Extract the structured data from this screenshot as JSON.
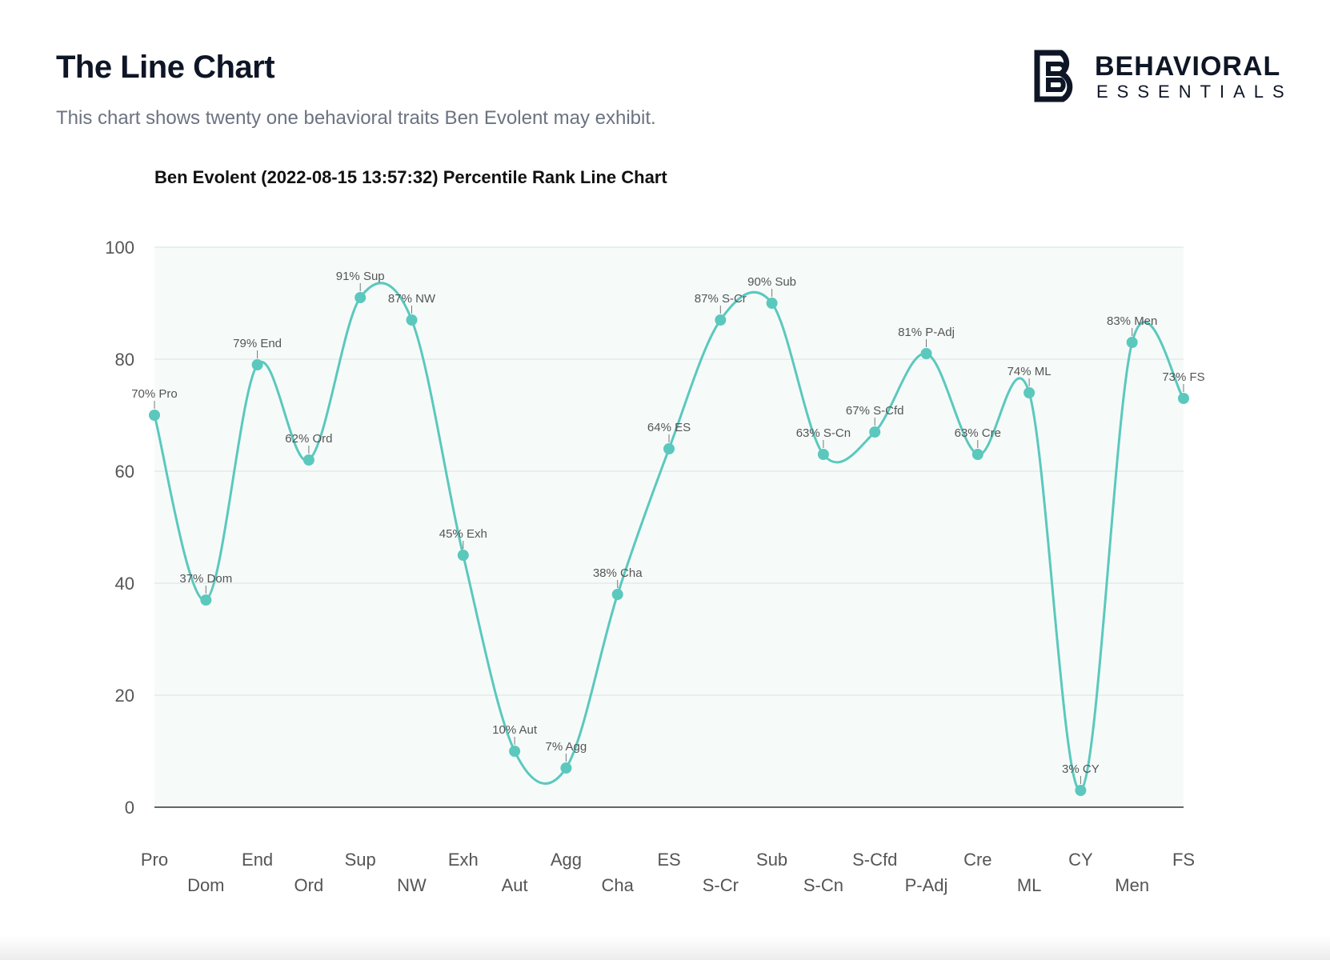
{
  "header": {
    "title": "The Line Chart",
    "subtitle": "This chart shows twenty one behavioral traits Ben Evolent may exhibit."
  },
  "logo": {
    "line1": "BEHAVIORAL",
    "line2": "ESSENTIALS",
    "icon": "behavioral-essentials-logo-icon"
  },
  "chart_data": {
    "type": "line",
    "title": "Ben Evolent (2022-08-15 13:57:32) Percentile Rank Line Chart",
    "xlabel": "",
    "ylabel": "",
    "ylim": [
      0,
      100
    ],
    "yticks": [
      0,
      20,
      40,
      60,
      80,
      100
    ],
    "grid": true,
    "smooth": true,
    "colors": {
      "line": "#5bc8bd",
      "plot_bg": "#f6fbfa",
      "grid": "#e0e6e6"
    },
    "categories": [
      "Pro",
      "Dom",
      "End",
      "Ord",
      "Sup",
      "NW",
      "Exh",
      "Aut",
      "Agg",
      "Cha",
      "ES",
      "S-Cr",
      "Sub",
      "S-Cn",
      "S-Cfd",
      "P-Adj",
      "Cre",
      "ML",
      "CY",
      "Men",
      "FS"
    ],
    "series": [
      {
        "values": [
          70,
          37,
          79,
          62,
          91,
          87,
          45,
          10,
          7,
          38,
          64,
          87,
          90,
          63,
          67,
          81,
          63,
          74,
          3,
          83,
          73
        ],
        "labels": [
          "70% Pro",
          "37% Dom",
          "79% End",
          "62% Ord",
          "91% Sup",
          "87% NW",
          "45% Exh",
          "10% Aut",
          "7% Agg",
          "38% Cha",
          "64% ES",
          "87% S-Cr",
          "90% Sub",
          "63% S-Cn",
          "67% S-Cfd",
          "81% P-Adj",
          "63% Cre",
          "74% ML",
          "3% CY",
          "83% Men",
          "73% FS"
        ]
      }
    ]
  }
}
